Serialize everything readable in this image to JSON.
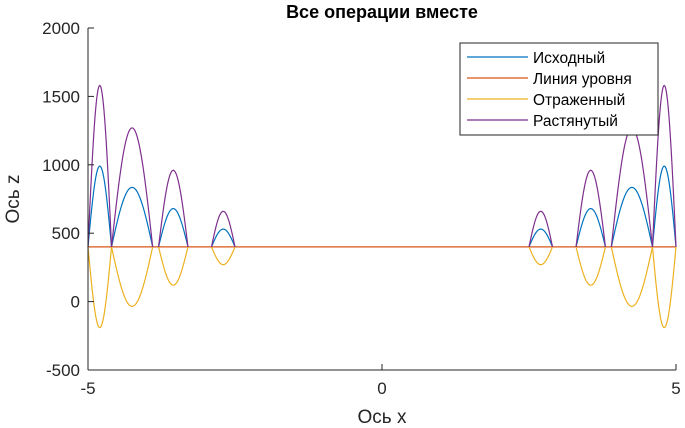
{
  "chart_data": {
    "type": "line",
    "title": "Все операции вместе",
    "xlabel": "Ось x",
    "ylabel": "Ось z",
    "xlim": [
      -5,
      5
    ],
    "ylim": [
      -500,
      2000
    ],
    "xticks": [
      -5,
      0,
      5
    ],
    "xtick_labels": [
      "-5",
      "0",
      "5"
    ],
    "yticks": [
      -500,
      0,
      500,
      1000,
      1500,
      2000
    ],
    "ytick_labels": [
      "-500",
      "0",
      "500",
      "1000",
      "1500",
      "2000"
    ],
    "grid": false,
    "legend_position": "top-right",
    "baseline": 400,
    "arches": [
      {
        "x_start": -5.0,
        "x_end": -4.6,
        "peak": 990
      },
      {
        "x_start": -4.6,
        "x_end": -3.9,
        "peak": 835
      },
      {
        "x_start": -3.8,
        "x_end": -3.3,
        "peak": 680
      },
      {
        "x_start": -2.9,
        "x_end": -2.5,
        "peak": 530
      },
      {
        "x_start": 2.5,
        "x_end": 2.9,
        "peak": 530
      },
      {
        "x_start": 3.3,
        "x_end": 3.8,
        "peak": 680
      },
      {
        "x_start": 3.9,
        "x_end": 4.6,
        "peak": 835
      },
      {
        "x_start": 4.6,
        "x_end": 5.0,
        "peak": 990
      }
    ],
    "series": [
      {
        "name": "Исходный",
        "color": "#0072BD",
        "values": [
          [
            -5.0,
            400
          ],
          [
            -4.8,
            990
          ],
          [
            -4.6,
            400
          ],
          [
            -4.6,
            400
          ],
          [
            -4.25,
            835
          ],
          [
            -3.9,
            400
          ],
          [
            -3.8,
            400
          ],
          [
            -3.55,
            680
          ],
          [
            -3.3,
            400
          ],
          [
            -2.9,
            400
          ],
          [
            -2.7,
            530
          ],
          [
            -2.5,
            400
          ],
          [
            2.5,
            400
          ],
          [
            2.7,
            530
          ],
          [
            2.9,
            400
          ],
          [
            3.3,
            400
          ],
          [
            3.55,
            680
          ],
          [
            3.8,
            400
          ],
          [
            3.9,
            400
          ],
          [
            4.25,
            835
          ],
          [
            4.6,
            400
          ],
          [
            4.6,
            400
          ],
          [
            4.8,
            990
          ],
          [
            5.0,
            400
          ]
        ]
      },
      {
        "name": "Линия уровня",
        "color": "#D95319",
        "values": [
          [
            -5,
            400
          ],
          [
            5,
            400
          ]
        ]
      },
      {
        "name": "Отраженный",
        "color": "#EDB120",
        "values": [
          [
            -5.0,
            400
          ],
          [
            -4.8,
            -190
          ],
          [
            -4.6,
            400
          ],
          [
            -4.6,
            400
          ],
          [
            -4.25,
            -35
          ],
          [
            -3.9,
            400
          ],
          [
            -3.8,
            400
          ],
          [
            -3.55,
            120
          ],
          [
            -3.3,
            400
          ],
          [
            -2.9,
            400
          ],
          [
            -2.7,
            270
          ],
          [
            -2.5,
            400
          ],
          [
            2.5,
            400
          ],
          [
            2.7,
            270
          ],
          [
            2.9,
            400
          ],
          [
            3.3,
            400
          ],
          [
            3.55,
            120
          ],
          [
            3.8,
            400
          ],
          [
            3.9,
            400
          ],
          [
            4.25,
            -35
          ],
          [
            4.6,
            400
          ],
          [
            4.6,
            400
          ],
          [
            4.8,
            -190
          ],
          [
            5.0,
            400
          ]
        ]
      },
      {
        "name": "Растянутый",
        "color": "#7E2F8E",
        "values": [
          [
            -5.0,
            400
          ],
          [
            -4.8,
            1580
          ],
          [
            -4.6,
            400
          ],
          [
            -4.6,
            400
          ],
          [
            -4.25,
            1270
          ],
          [
            -3.9,
            400
          ],
          [
            -3.8,
            400
          ],
          [
            -3.55,
            960
          ],
          [
            -3.3,
            400
          ],
          [
            -2.9,
            400
          ],
          [
            -2.7,
            660
          ],
          [
            -2.5,
            400
          ],
          [
            2.5,
            400
          ],
          [
            2.7,
            660
          ],
          [
            2.9,
            400
          ],
          [
            3.3,
            400
          ],
          [
            3.55,
            960
          ],
          [
            3.8,
            400
          ],
          [
            3.9,
            400
          ],
          [
            4.25,
            1270
          ],
          [
            4.6,
            400
          ],
          [
            4.6,
            400
          ],
          [
            4.8,
            1580
          ],
          [
            5.0,
            400
          ]
        ]
      }
    ]
  }
}
